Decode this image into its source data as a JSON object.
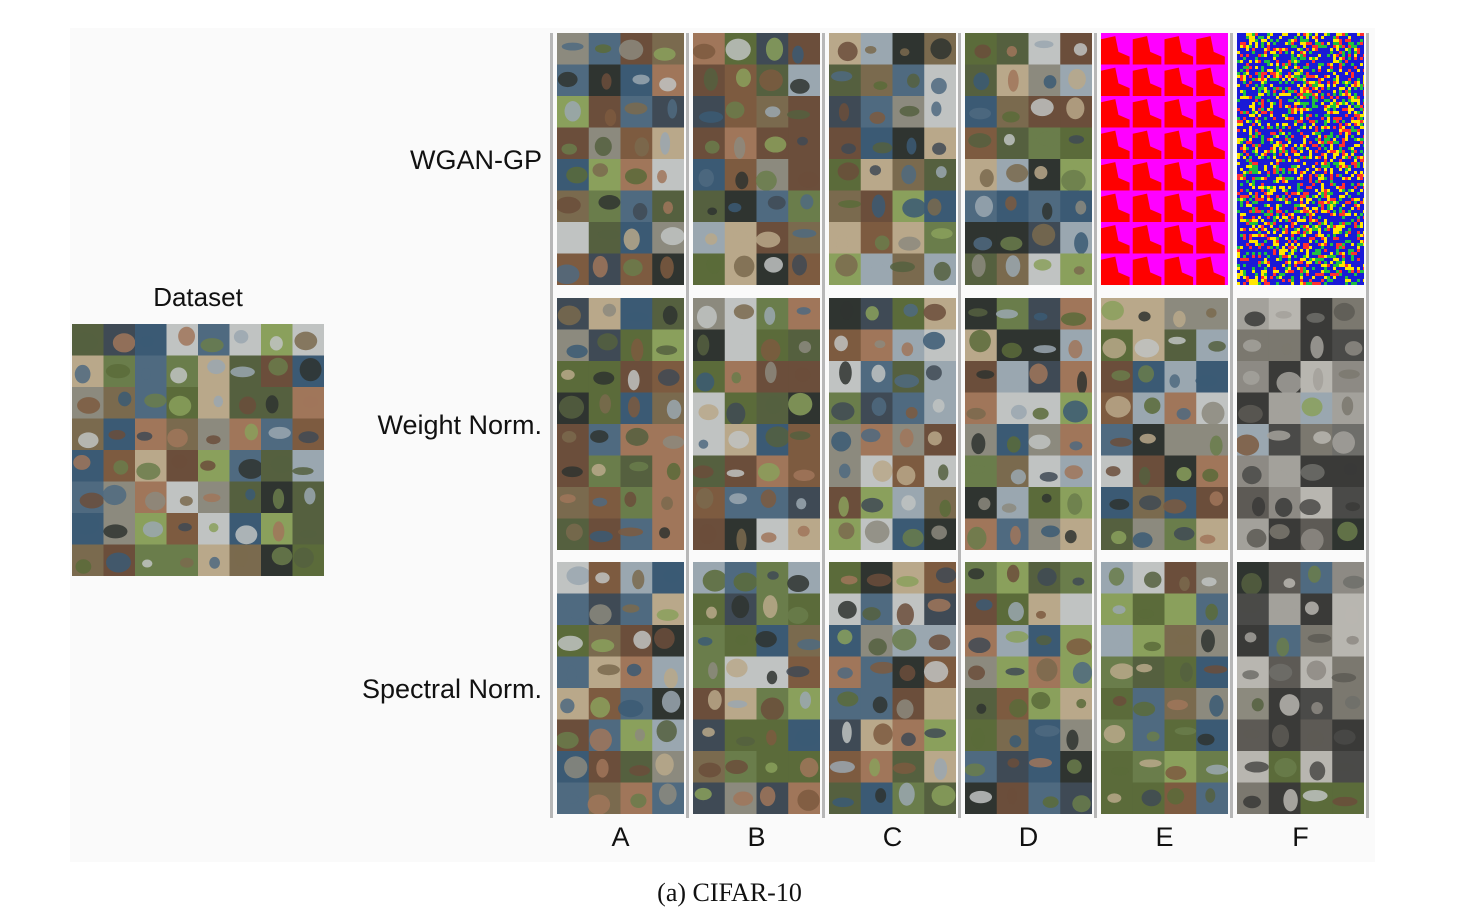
{
  "dataset": {
    "title": "Dataset"
  },
  "rows": [
    {
      "label": "WGAN-GP"
    },
    {
      "label": "Weight Norm."
    },
    {
      "label": "Spectral Norm."
    }
  ],
  "columns": [
    "A",
    "B",
    "C",
    "D",
    "E",
    "F"
  ],
  "caption": "(a)  CIFAR-10",
  "special_cells": {
    "wgan_gp_E": {
      "appearance": "collapsed: magenta background with red shapes",
      "colors": [
        "#ff00ff",
        "#ff0000"
      ]
    },
    "wgan_gp_F": {
      "appearance": "collapsed: blue noise pattern",
      "colors": [
        "#1a1ad6",
        "#ffe600",
        "#ff3030",
        "#20c040"
      ]
    }
  },
  "colors": {
    "separator": "#b7b7b7",
    "panel_background": "#fafafa"
  }
}
